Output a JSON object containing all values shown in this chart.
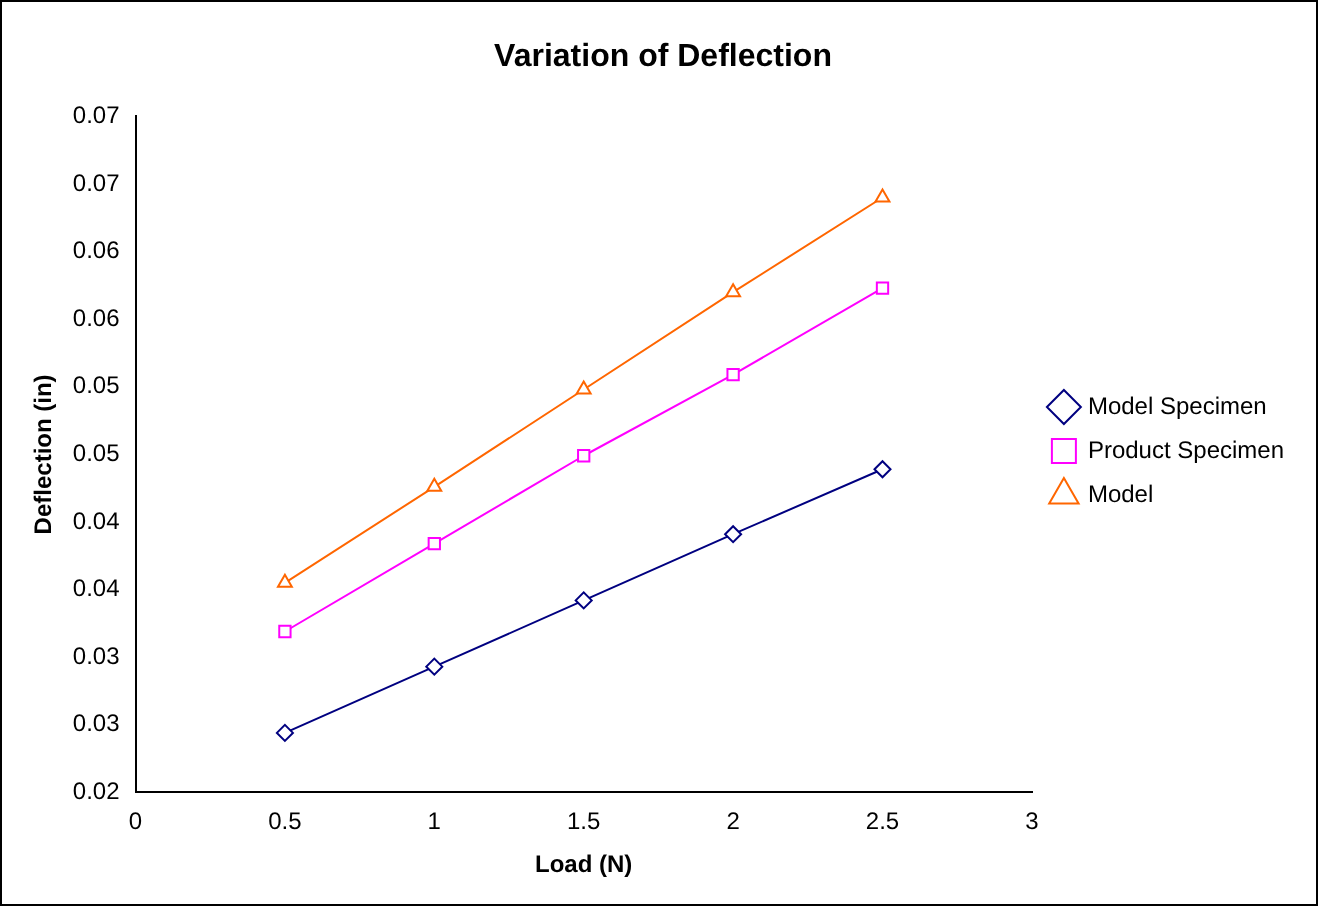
{
  "chart_data": {
    "type": "line",
    "title": "Variation of Deflection",
    "xlabel": "Load (N)",
    "ylabel": "Deflection (in)",
    "x": [
      0.5,
      1,
      1.5,
      2,
      2.5
    ],
    "series": [
      {
        "name": "Model Specimen",
        "color": "#000080",
        "marker": "diamond",
        "values": [
          0.0244,
          0.0293,
          0.0342,
          0.0391,
          0.0439
        ]
      },
      {
        "name": "Product Specimen",
        "color": "#ff00ff",
        "marker": "square",
        "values": [
          0.0319,
          0.0384,
          0.0449,
          0.0509,
          0.0573
        ]
      },
      {
        "name": "Model",
        "color": "#ff6600",
        "marker": "triangle",
        "values": [
          0.0355,
          0.0426,
          0.0498,
          0.057,
          0.064
        ]
      }
    ],
    "xlim": [
      0,
      3
    ],
    "xticks": [
      0,
      0.5,
      1,
      1.5,
      2,
      2.5,
      3
    ],
    "ylim": [
      0.02,
      0.07
    ],
    "yticks": [
      {
        "value": 0.02,
        "label": "0.02"
      },
      {
        "value": 0.025,
        "label": "0.03"
      },
      {
        "value": 0.03,
        "label": "0.03"
      },
      {
        "value": 0.035,
        "label": "0.04"
      },
      {
        "value": 0.04,
        "label": "0.04"
      },
      {
        "value": 0.045,
        "label": "0.05"
      },
      {
        "value": 0.05,
        "label": "0.05"
      },
      {
        "value": 0.055,
        "label": "0.06"
      },
      {
        "value": 0.06,
        "label": "0.06"
      },
      {
        "value": 0.065,
        "label": "0.07"
      },
      {
        "value": 0.07,
        "label": "0.07"
      }
    ],
    "grid": false,
    "legend": "right",
    "line_style": "solid"
  }
}
